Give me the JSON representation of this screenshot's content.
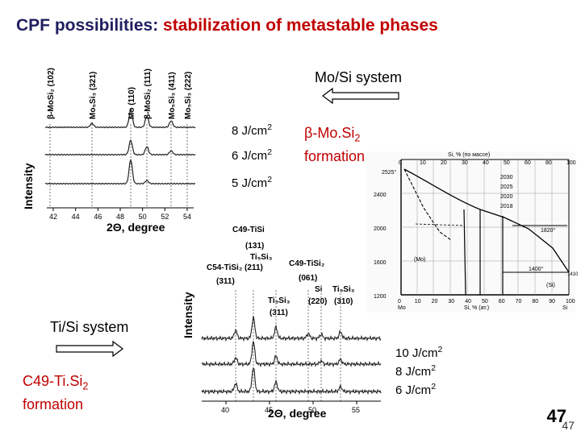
{
  "slide": {
    "title_part1": "CPF possibilities:",
    "title_part2": "stabilization of metastable phases",
    "page_number": "47"
  },
  "mo_si": {
    "system_label": "Mo/Si system",
    "formation_line1": "β-Mo.Si",
    "formation_sub": "2",
    "formation_line2": "formation",
    "fluences": [
      "8 J/cm",
      "6 J/cm",
      "5 J/cm"
    ],
    "fluence_sup": "2",
    "xrd": {
      "ylabel": "Intensity",
      "xlabel": "2Θ, degree",
      "xticks": [
        "42",
        "44",
        "46",
        "48",
        "50",
        "52",
        "54"
      ],
      "peak_labels": [
        "β-MoSi₂ (102)",
        "Mo₅Si₃ (321)",
        "Mo (110)",
        "β-MoSi₂ (111)",
        "Mo₅Si₃ (411)",
        "Mo₅Si₃ (222)"
      ]
    }
  },
  "phase_diagram": {
    "top_label": "Si, % (по массе)",
    "bottom_label": "Si, % (ат.)",
    "temps": [
      "2400",
      "2000",
      "1600",
      "1200"
    ],
    "top_ticks": [
      "0",
      "10",
      "20",
      "30",
      "40",
      "50",
      "60",
      "80",
      "100"
    ],
    "bottom_ticks": [
      "0",
      "10",
      "20",
      "30",
      "40",
      "50",
      "60",
      "70",
      "80",
      "90",
      "100"
    ],
    "left_element": "Mo",
    "right_element": "Si",
    "annotations": [
      "2030",
      "2025",
      "2020",
      "2018",
      "1820°",
      "1400°",
      "(Mo)",
      "(Si)",
      "2525°",
      "1410"
    ]
  },
  "ti_si": {
    "system_label": "Ti/Si system",
    "formation_line1": "C49-Ti.Si",
    "formation_sub": "2",
    "formation_line2": "formation",
    "fluences": [
      "10 J/cm",
      "8 J/cm",
      "6 J/cm"
    ],
    "fluence_sup": "2",
    "xrd": {
      "ylabel": "Intensity",
      "xlabel": "2Θ, degree",
      "xticks": [
        "40",
        "45",
        "50",
        "55"
      ],
      "peak_labels": [
        "C49-TiSi₂ (131)",
        "Ti₅Si₃ (211)",
        "C54-TiSi₂ (311)",
        "C49-TiSi₂ (061)",
        "Si (220)",
        "Ti₅Si₃ (310)",
        "Ti₅Si₃ (311)"
      ]
    }
  }
}
